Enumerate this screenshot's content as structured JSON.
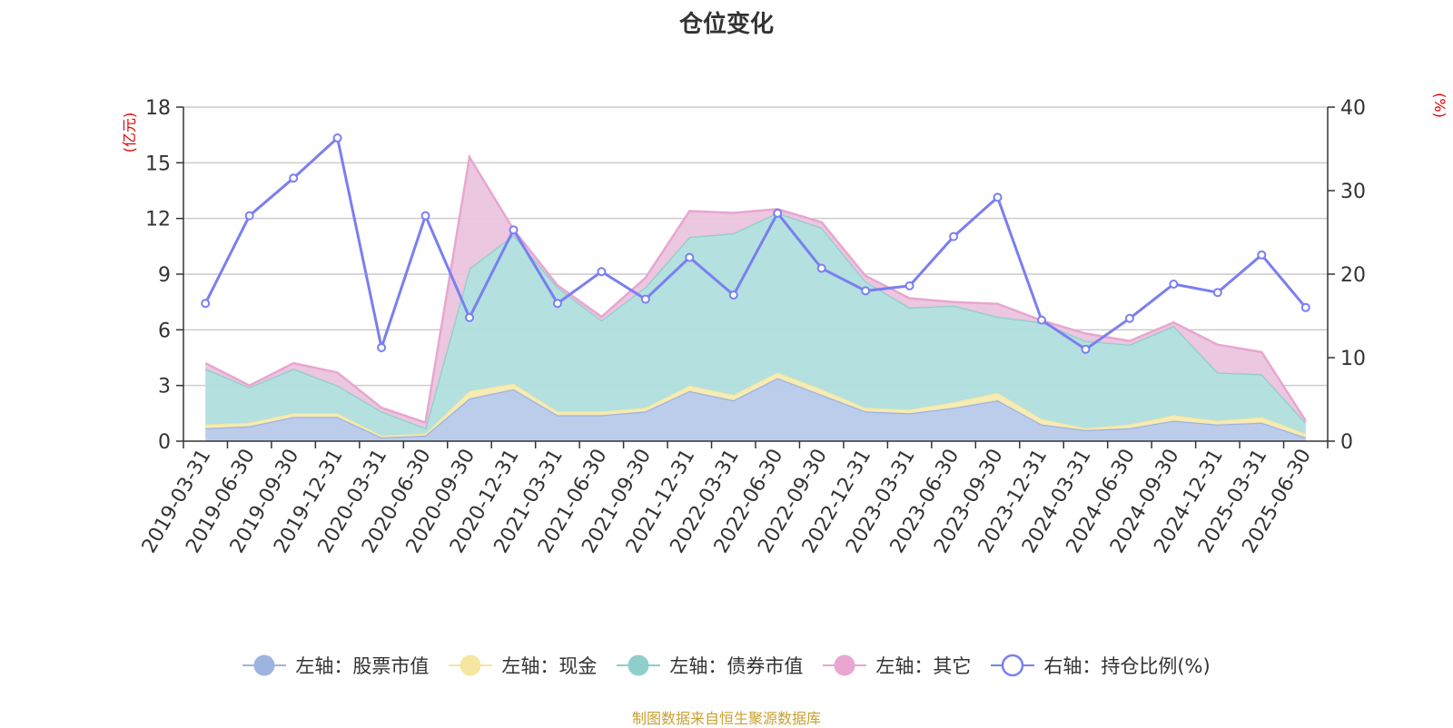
{
  "chart_data": {
    "type": "area",
    "title": "仓位变化",
    "left_axis_unit": "(亿元)",
    "right_axis_unit": "(%)",
    "categories": [
      "2019-03-31",
      "2019-06-30",
      "2019-09-30",
      "2019-12-31",
      "2020-03-31",
      "2020-06-30",
      "2020-09-30",
      "2020-12-31",
      "2021-03-31",
      "2021-06-30",
      "2021-09-30",
      "2021-12-31",
      "2022-03-31",
      "2022-06-30",
      "2022-09-30",
      "2022-12-31",
      "2023-03-31",
      "2023-06-30",
      "2023-09-30",
      "2023-12-31",
      "2024-03-31",
      "2024-06-30",
      "2024-09-30",
      "2024-12-31",
      "2025-03-31",
      "2025-06-30"
    ],
    "ylim_left": [
      0,
      18
    ],
    "yticks_left": [
      "0",
      "3",
      "6",
      "9",
      "12",
      "15",
      "18"
    ],
    "ylim_right": [
      0,
      40
    ],
    "yticks_right": [
      "0",
      "10",
      "20",
      "30",
      "40"
    ],
    "grid": true,
    "legend_position": "bottom",
    "stacked_series": [
      {
        "name": "左轴：股票市值",
        "color": "#9db4e0",
        "fill": "#b8c9ea",
        "values": [
          0.7,
          0.8,
          1.3,
          1.3,
          0.2,
          0.3,
          2.3,
          2.8,
          1.4,
          1.4,
          1.6,
          2.7,
          2.2,
          3.4,
          2.5,
          1.6,
          1.5,
          1.8,
          2.2,
          0.9,
          0.6,
          0.7,
          1.1,
          0.9,
          1.0,
          0.2
        ]
      },
      {
        "name": "左轴：现金",
        "color": "#f5e6a0",
        "fill": "#f7ebb2",
        "values": [
          0.2,
          0.2,
          0.2,
          0.2,
          0.1,
          0.1,
          0.4,
          0.3,
          0.2,
          0.2,
          0.2,
          0.3,
          0.3,
          0.3,
          0.3,
          0.2,
          0.2,
          0.3,
          0.4,
          0.3,
          0.1,
          0.2,
          0.3,
          0.2,
          0.3,
          0.2
        ]
      },
      {
        "name": "左轴：债券市值",
        "color": "#8ecfcc",
        "fill": "#b0dfdd",
        "values": [
          3.0,
          1.9,
          2.4,
          1.5,
          1.3,
          0.3,
          6.6,
          8.0,
          6.7,
          4.9,
          6.5,
          8.0,
          8.7,
          8.6,
          8.7,
          6.8,
          5.5,
          5.2,
          4.1,
          5.2,
          4.7,
          4.3,
          4.8,
          2.6,
          2.3,
          0.6
        ]
      },
      {
        "name": "左轴：其它",
        "color": "#e8a6d0",
        "fill": "#ebc4de",
        "values": [
          0.3,
          0.1,
          0.3,
          0.7,
          0.2,
          0.3,
          6.0,
          0.3,
          0.1,
          0.2,
          0.5,
          1.4,
          1.1,
          0.2,
          0.3,
          0.3,
          0.5,
          0.2,
          0.7,
          0.1,
          0.4,
          0.2,
          0.2,
          1.5,
          1.2,
          0.1
        ]
      }
    ],
    "line_series": {
      "name": "右轴：持仓比例(%)",
      "color": "#7a7ff0",
      "axis": "right",
      "values": [
        16.5,
        27.0,
        31.5,
        36.3,
        11.2,
        27.0,
        14.8,
        25.3,
        16.5,
        20.3,
        17.0,
        22.0,
        17.5,
        27.3,
        20.7,
        18.0,
        18.6,
        24.5,
        29.2,
        14.5,
        11.0,
        14.7,
        18.8,
        17.8,
        22.3,
        16.0
      ]
    }
  },
  "source_note": "制图数据来自恒生聚源数据库"
}
